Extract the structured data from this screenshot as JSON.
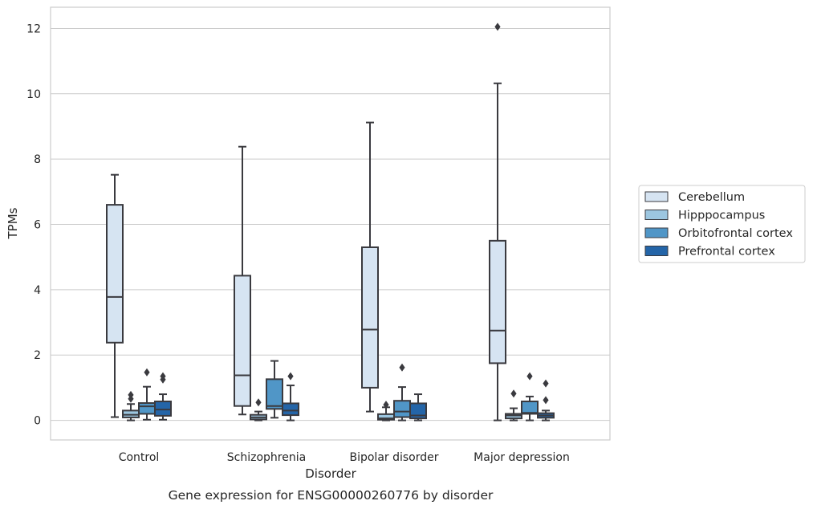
{
  "chart_data": {
    "type": "box",
    "caption": "Gene expression for ENSG00000260776 by disorder",
    "xlabel": "Disorder",
    "ylabel": "TPMs",
    "ylim": [
      -0.6,
      12.65
    ],
    "yticks": [
      0,
      2,
      4,
      6,
      8,
      10,
      12
    ],
    "grid": "horizontal",
    "legend_position": "right",
    "categories": [
      "Control",
      "Schizophrenia",
      "Bipolar disorder",
      "Major depression"
    ],
    "series": [
      {
        "name": "Cerebellum",
        "color": "#d6e4f2",
        "boxes": [
          {
            "whislo": 0.1,
            "q1": 2.38,
            "med": 3.78,
            "q3": 6.6,
            "whishi": 7.52,
            "fliers": []
          },
          {
            "whislo": 0.18,
            "q1": 0.44,
            "med": 1.38,
            "q3": 4.43,
            "whishi": 8.38,
            "fliers": []
          },
          {
            "whislo": 0.27,
            "q1": 1.0,
            "med": 2.78,
            "q3": 5.3,
            "whishi": 9.12,
            "fliers": []
          },
          {
            "whislo": 0.0,
            "q1": 1.75,
            "med": 2.75,
            "q3": 5.5,
            "whishi": 10.32,
            "fliers": [
              12.05
            ]
          }
        ]
      },
      {
        "name": "Hipppocampus",
        "color": "#9cc6e0",
        "boxes": [
          {
            "whislo": 0.0,
            "q1": 0.09,
            "med": 0.17,
            "q3": 0.3,
            "whishi": 0.5,
            "fliers": [
              0.78,
              0.66
            ]
          },
          {
            "whislo": 0.0,
            "q1": 0.03,
            "med": 0.09,
            "q3": 0.17,
            "whishi": 0.27,
            "fliers": [
              0.55
            ]
          },
          {
            "whislo": 0.0,
            "q1": 0.02,
            "med": 0.06,
            "q3": 0.19,
            "whishi": 0.4,
            "fliers": [
              0.48
            ]
          },
          {
            "whislo": 0.0,
            "q1": 0.06,
            "med": 0.15,
            "q3": 0.2,
            "whishi": 0.37,
            "fliers": [
              0.82
            ]
          }
        ]
      },
      {
        "name": "Orbitofrontal cortex",
        "color": "#5096c7",
        "boxes": [
          {
            "whislo": 0.02,
            "q1": 0.2,
            "med": 0.43,
            "q3": 0.53,
            "whishi": 1.03,
            "fliers": [
              1.47
            ]
          },
          {
            "whislo": 0.08,
            "q1": 0.35,
            "med": 0.44,
            "q3": 1.26,
            "whishi": 1.82,
            "fliers": []
          },
          {
            "whislo": 0.0,
            "q1": 0.1,
            "med": 0.27,
            "q3": 0.6,
            "whishi": 1.02,
            "fliers": [
              1.62
            ]
          },
          {
            "whislo": 0.0,
            "q1": 0.2,
            "med": 0.23,
            "q3": 0.58,
            "whishi": 0.73,
            "fliers": [
              1.35
            ]
          }
        ]
      },
      {
        "name": "Prefrontal cortex",
        "color": "#2465a8",
        "boxes": [
          {
            "whislo": 0.02,
            "q1": 0.14,
            "med": 0.33,
            "q3": 0.58,
            "whishi": 0.8,
            "fliers": [
              1.35,
              1.25
            ]
          },
          {
            "whislo": 0.0,
            "q1": 0.16,
            "med": 0.3,
            "q3": 0.52,
            "whishi": 1.07,
            "fliers": [
              1.35
            ]
          },
          {
            "whislo": 0.0,
            "q1": 0.06,
            "med": 0.15,
            "q3": 0.52,
            "whishi": 0.8,
            "fliers": []
          },
          {
            "whislo": 0.0,
            "q1": 0.08,
            "med": 0.15,
            "q3": 0.22,
            "whishi": 0.3,
            "fliers": [
              1.13,
              0.62
            ]
          }
        ]
      }
    ]
  }
}
